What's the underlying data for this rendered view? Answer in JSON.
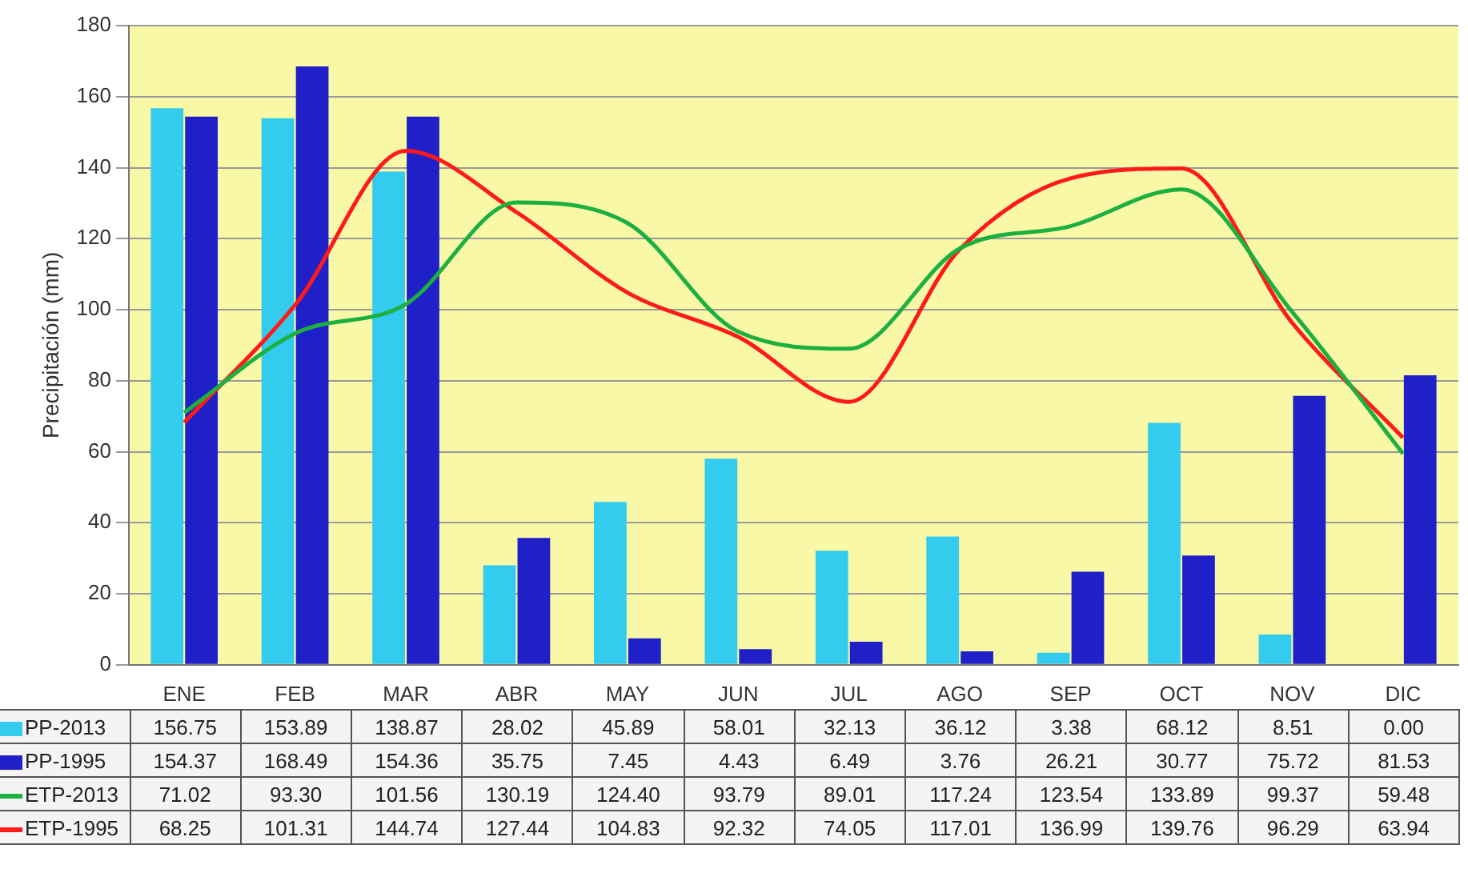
{
  "chart_data": {
    "type": "bar",
    "ylabel": "Precipitación (mm)",
    "categories": [
      "ENE",
      "FEB",
      "MAR",
      "ABR",
      "MAY",
      "JUN",
      "JUL",
      "AGO",
      "SEP",
      "OCT",
      "NOV",
      "DIC"
    ],
    "series": [
      {
        "name": "PP-2013",
        "color": "#33ccee",
        "values": [
          156.75,
          153.89,
          138.87,
          28.02,
          45.89,
          58.01,
          32.13,
          36.12,
          3.38,
          68.12,
          8.51,
          0.0
        ],
        "value_labels": [
          "156.75",
          "153.89",
          "138.87",
          "28.02",
          "45.89",
          "58.01",
          "32.13",
          "36.12",
          "3.38",
          "68.12",
          "8.51",
          "0.00"
        ]
      },
      {
        "name": "PP-1995",
        "color": "#2020c8",
        "values": [
          154.37,
          168.49,
          154.36,
          35.75,
          7.45,
          4.43,
          6.49,
          3.76,
          26.21,
          30.77,
          75.72,
          81.53
        ],
        "value_labels": [
          "154.37",
          "168.49",
          "154.36",
          "35.75",
          "7.45",
          "4.43",
          "6.49",
          "3.76",
          "26.21",
          "30.77",
          "75.72",
          "81.53"
        ]
      },
      {
        "name": "ETP-2013",
        "type": "line",
        "color": "#1db040",
        "values": [
          71.02,
          93.3,
          101.56,
          130.19,
          124.4,
          93.79,
          89.01,
          117.24,
          123.54,
          133.89,
          99.37,
          59.48
        ],
        "value_labels": [
          "71.02",
          "93.30",
          "101.56",
          "130.19",
          "124.40",
          "93.79",
          "89.01",
          "117.24",
          "123.54",
          "133.89",
          "99.37",
          "59.48"
        ]
      },
      {
        "name": "ETP-1995",
        "type": "line",
        "color": "#ff1a1a",
        "values": [
          68.25,
          101.31,
          144.74,
          127.44,
          104.83,
          92.32,
          74.05,
          117.01,
          136.99,
          139.76,
          96.29,
          63.94
        ],
        "value_labels": [
          "68.25",
          "101.31",
          "144.74",
          "127.44",
          "104.83",
          "92.32",
          "74.05",
          "117.01",
          "136.99",
          "139.76",
          "96.29",
          "63.94"
        ]
      }
    ],
    "ylim": [
      0,
      180
    ],
    "yticks": [
      0,
      20,
      40,
      60,
      80,
      100,
      120,
      140,
      160,
      180
    ],
    "grid": "y",
    "legend": "bottom",
    "marker": "none",
    "line_style": "solid"
  }
}
